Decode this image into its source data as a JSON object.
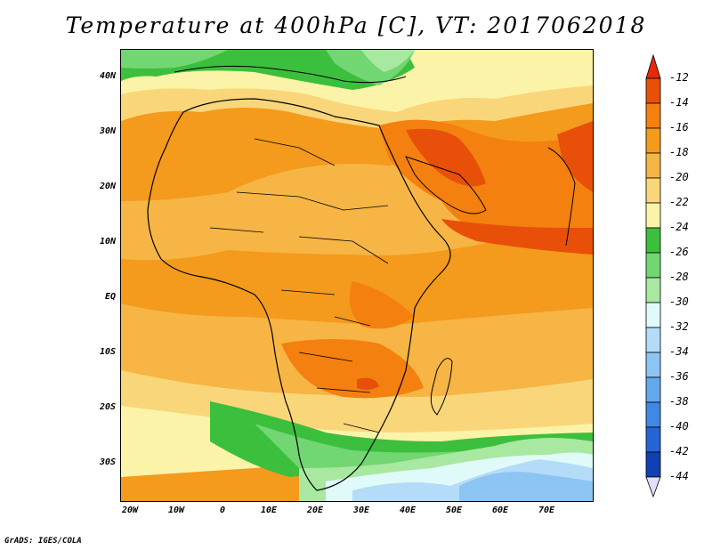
{
  "title": "Temperature at 400hPa [C], VT: 2017062018",
  "footer": "GrADS: IGES/COLA",
  "lat_labels": [
    "40N",
    "30N",
    "20N",
    "10N",
    "EQ",
    "10S",
    "20S",
    "30S"
  ],
  "lon_labels": [
    "20W",
    "10W",
    "0",
    "10E",
    "20E",
    "30E",
    "40E",
    "50E",
    "60E",
    "70E"
  ],
  "colorbar": {
    "labels": [
      "-12",
      "-14",
      "-16",
      "-18",
      "-20",
      "-22",
      "-24",
      "-26",
      "-28",
      "-30",
      "-32",
      "-34",
      "-36",
      "-38",
      "-40",
      "-42",
      "-44"
    ],
    "colors": [
      "#e8500a",
      "#f4800f",
      "#f49a1c",
      "#f6b545",
      "#fad67a",
      "#fbf3a8",
      "#3cbf3c",
      "#72d672",
      "#a8e8a0",
      "#e0fafa",
      "#b4dcf8",
      "#8cc4f4",
      "#64a8ee",
      "#4088e4",
      "#2464d4",
      "#1040b4",
      "#0a1a78"
    ],
    "top_arrow_color": "#e8280a",
    "bottom_arrow_color": "#e0e0fa"
  },
  "colors": {
    "background_field": "#f49a1c",
    "coastline": "#000000"
  }
}
